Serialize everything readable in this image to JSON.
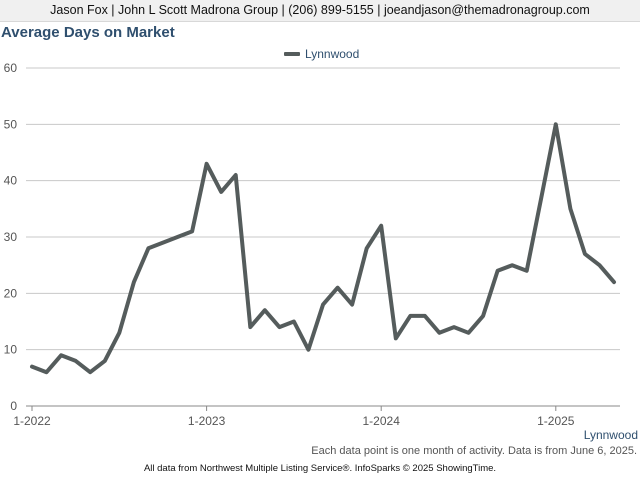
{
  "header": {
    "contact": "Jason Fox | John L Scott Madrona Group | (206) 899-5155 | joeandjason@themadronagroup.com"
  },
  "chart_data": {
    "type": "line",
    "title": "Average Days on Market",
    "xlabel": "",
    "ylabel": "",
    "ylim": [
      0,
      60
    ],
    "yticks": [
      0,
      10,
      20,
      30,
      40,
      50,
      60
    ],
    "xticks": [
      "1-2022",
      "1-2023",
      "1-2024",
      "1-2025"
    ],
    "grid": true,
    "legend_position": "top-center",
    "x": [
      "2022-01",
      "2022-02",
      "2022-03",
      "2022-04",
      "2022-05",
      "2022-06",
      "2022-07",
      "2022-08",
      "2022-09",
      "2022-10",
      "2022-11",
      "2022-12",
      "2023-01",
      "2023-02",
      "2023-03",
      "2023-04",
      "2023-05",
      "2023-06",
      "2023-07",
      "2023-08",
      "2023-09",
      "2023-10",
      "2023-11",
      "2023-12",
      "2024-01",
      "2024-02",
      "2024-03",
      "2024-04",
      "2024-05",
      "2024-06",
      "2024-07",
      "2024-08",
      "2024-09",
      "2024-10",
      "2024-11",
      "2024-12",
      "2025-01",
      "2025-02",
      "2025-03",
      "2025-04",
      "2025-05"
    ],
    "series": [
      {
        "name": "Lynnwood",
        "color": "#555c5c",
        "values": [
          7,
          6,
          9,
          8,
          6,
          8,
          13,
          22,
          28,
          29,
          30,
          31,
          43,
          38,
          41,
          14,
          17,
          14,
          15,
          10,
          18,
          21,
          18,
          28,
          32,
          12,
          16,
          16,
          13,
          14,
          13,
          16,
          24,
          25,
          24,
          37,
          50,
          35,
          27,
          25,
          22
        ]
      }
    ],
    "end_label": "Lynnwood"
  },
  "footer": {
    "note": "Each data point is one month of activity. Data is from June 6, 2025.",
    "source": "All data from Northwest Multiple Listing Service®. InfoSparks © 2025 ShowingTime."
  }
}
